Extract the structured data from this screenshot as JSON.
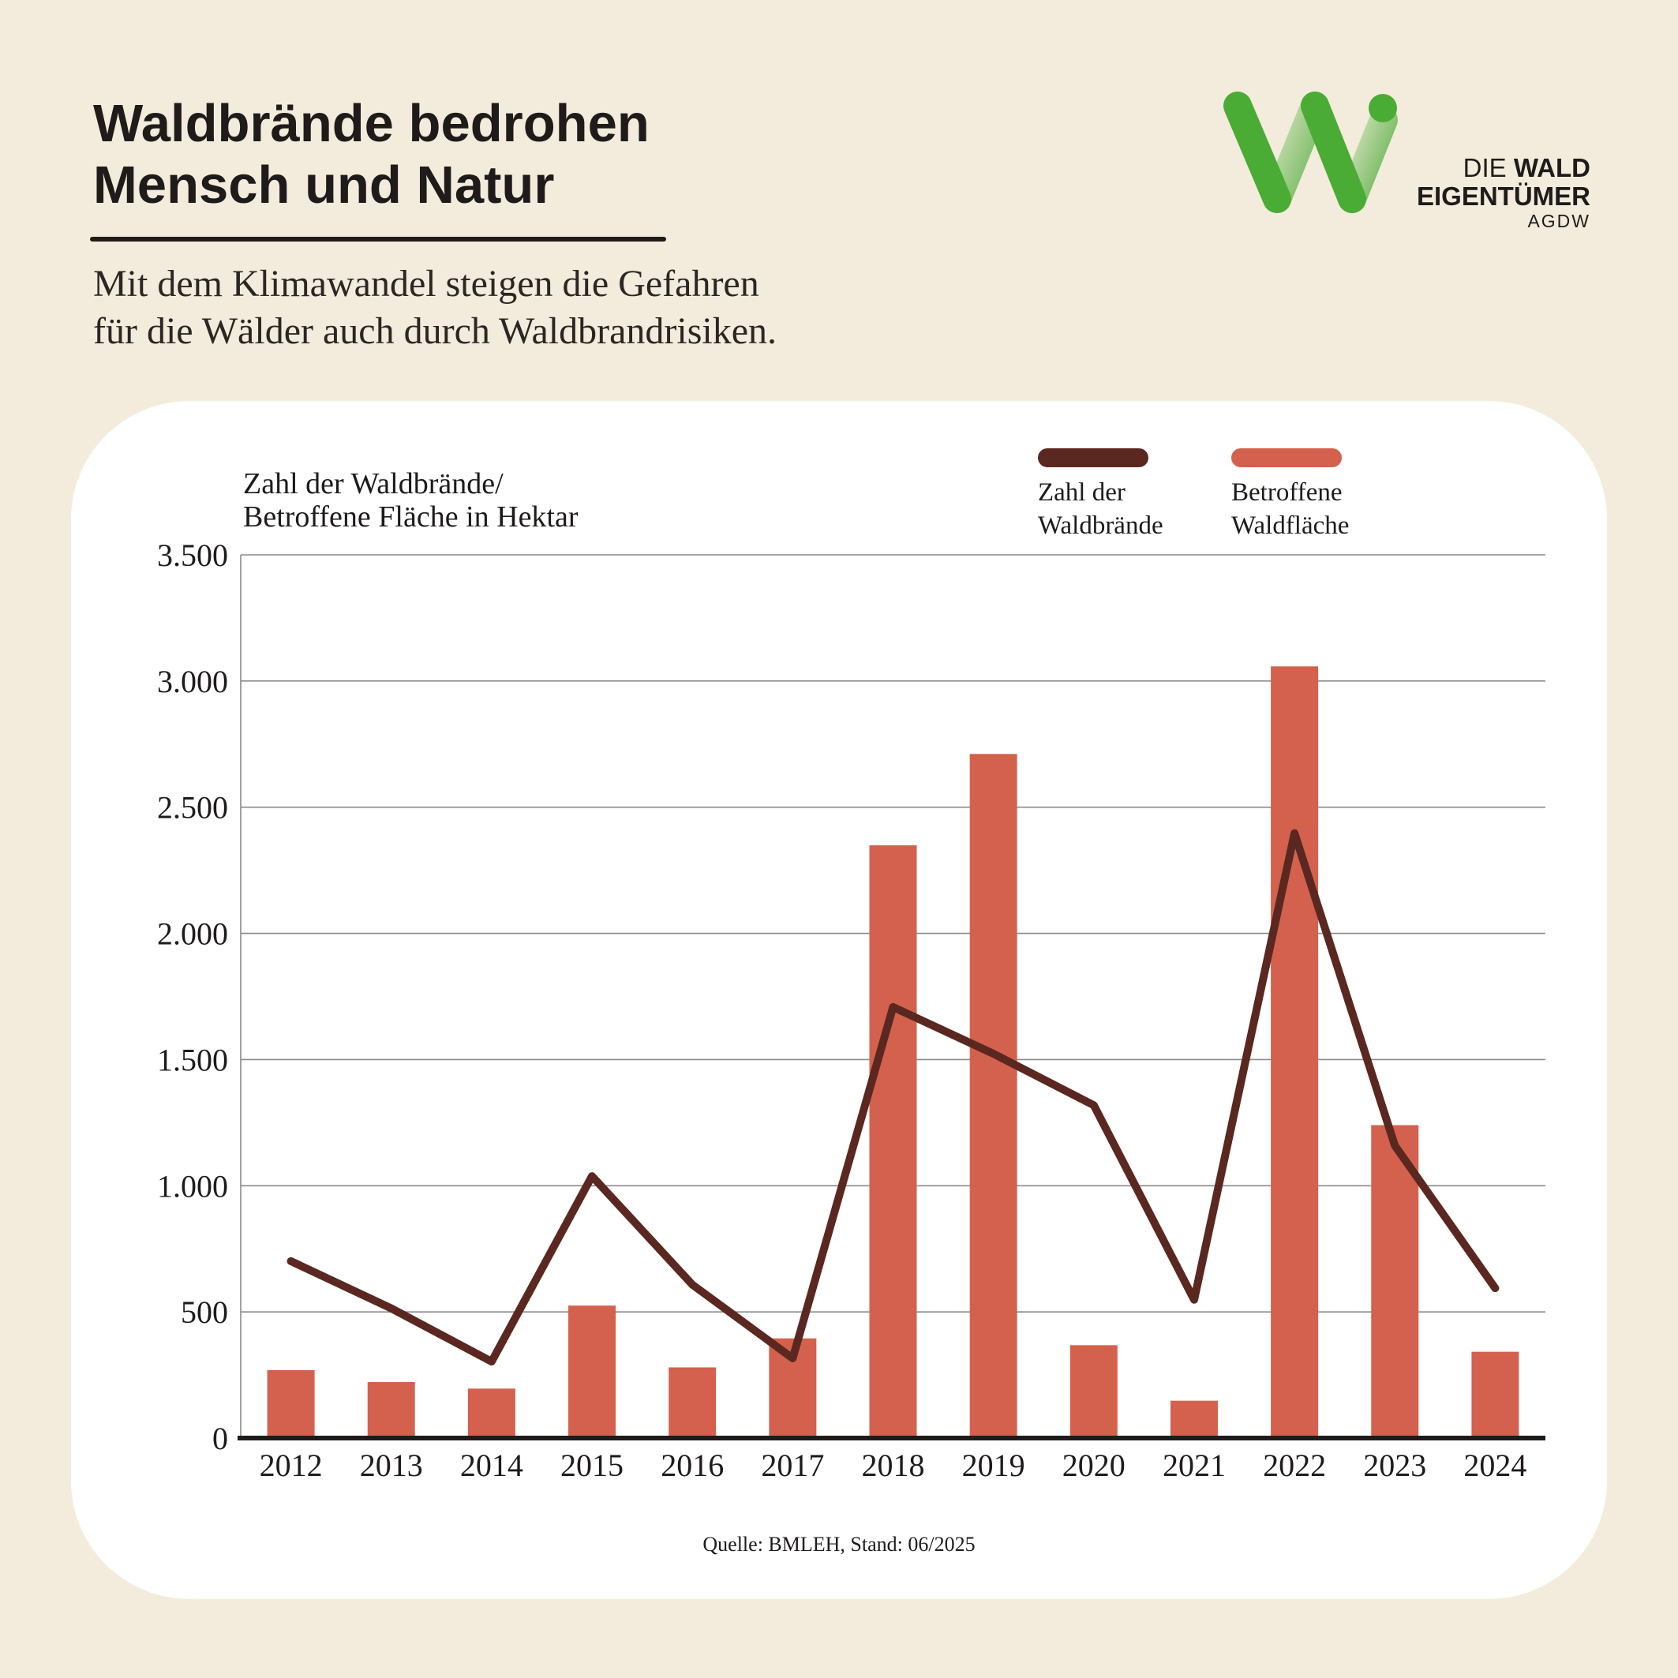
{
  "header": {
    "title": "Waldbrände bedrohen\nMensch und Natur",
    "subtitle": "Mit dem Klimawandel steigen die Gefahren\nfür die Wälder auch durch Waldbrandrisiken."
  },
  "logo": {
    "line1_light": "DIE ",
    "line1_bold": "WALD",
    "line2": "EIGENTÜMER",
    "line3": "AGDW",
    "color_green": "#4aab35"
  },
  "chart_data": {
    "type": "bar+line",
    "ylabel": "Zahl der Waldbrände/\nBetroffene Fläche in Hektar",
    "categories": [
      "2012",
      "2013",
      "2014",
      "2015",
      "2016",
      "2017",
      "2018",
      "2019",
      "2020",
      "2021",
      "2022",
      "2023",
      "2024"
    ],
    "ylim": [
      0,
      3500
    ],
    "yticks": [
      0,
      500,
      1000,
      1500,
      2000,
      2500,
      3000,
      3500
    ],
    "ytick_labels": [
      "0",
      "500",
      "1.000",
      "1.500",
      "2.000",
      "2.500",
      "3.000",
      "3.500"
    ],
    "grid": true,
    "legend_position": "top-right",
    "series": [
      {
        "name": "Betroffene\nWaldfläche",
        "kind": "bar",
        "color": "#d4614d",
        "values": [
          269,
          222,
          196,
          525,
          280,
          395,
          2349,
          2711,
          368,
          148,
          3058,
          1240,
          342
        ]
      },
      {
        "name": "Zahl der\nWaldbrände",
        "kind": "line",
        "color": "#5a2820",
        "values": [
          701,
          514,
          303,
          1038,
          608,
          316,
          1708,
          1523,
          1319,
          548,
          2397,
          1159,
          594
        ]
      }
    ],
    "source": "Quelle: BMLEH,  Stand: 06/2025"
  }
}
